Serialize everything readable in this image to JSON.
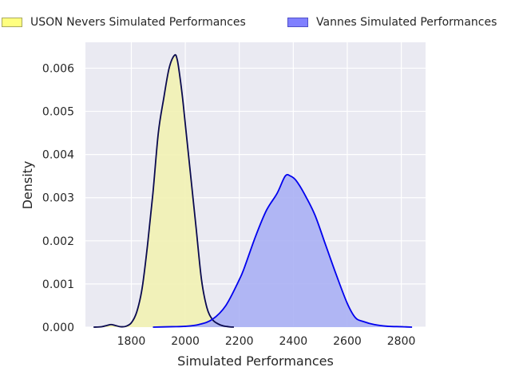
{
  "chart_data": {
    "type": "area",
    "title": "",
    "xlabel": "Simulated Performances",
    "ylabel": "Density",
    "xlim": [
      1630,
      2890
    ],
    "ylim": [
      0,
      0.0066
    ],
    "grid": true,
    "legend_position": "top",
    "x_ticks": [
      "1800",
      "2000",
      "2200",
      "2400",
      "2600",
      "2800"
    ],
    "y_ticks": [
      "0.000",
      "0.001",
      "0.002",
      "0.003",
      "0.004",
      "0.005",
      "0.006"
    ],
    "x_tick_values": [
      1800,
      2000,
      2200,
      2400,
      2600,
      2800
    ],
    "y_tick_values": [
      0,
      0.001,
      0.002,
      0.003,
      0.004,
      0.005,
      0.006
    ],
    "series": [
      {
        "name": "USON Nevers Simulated Performances",
        "fill_color": "#f2f2b3",
        "line_color": "#0a0a4f",
        "legend_color": "#ffff80",
        "x": [
          1660,
          1690,
          1710,
          1725,
          1740,
          1760,
          1780,
          1800,
          1820,
          1840,
          1860,
          1880,
          1900,
          1920,
          1940,
          1960,
          1970,
          1980,
          1990,
          2000,
          2020,
          2040,
          2060,
          2080,
          2100,
          2120,
          2140,
          2160,
          2180
        ],
        "y": [
          0,
          1e-05,
          4e-05,
          6e-05,
          4e-05,
          1e-05,
          2e-05,
          0.0001,
          0.00035,
          0.0009,
          0.0019,
          0.0031,
          0.0045,
          0.0053,
          0.006,
          0.0063,
          0.0062,
          0.0058,
          0.0053,
          0.0047,
          0.0035,
          0.0023,
          0.0011,
          0.00045,
          0.00018,
          8e-05,
          3e-05,
          1e-05,
          0
        ]
      },
      {
        "name": "Vannes Simulated Performances",
        "fill_color": "#aab0f4",
        "line_color": "#0000ee",
        "legend_color": "#8080ff",
        "x": [
          1880,
          1950,
          2000,
          2050,
          2100,
          2150,
          2200,
          2220,
          2260,
          2300,
          2340,
          2370,
          2390,
          2410,
          2440,
          2480,
          2520,
          2560,
          2600,
          2630,
          2660,
          2700,
          2750,
          2800,
          2840
        ],
        "y": [
          0,
          1e-05,
          2e-05,
          6e-05,
          0.00018,
          0.0005,
          0.0011,
          0.0014,
          0.0021,
          0.0027,
          0.0031,
          0.0035,
          0.0035,
          0.0034,
          0.0031,
          0.0026,
          0.0019,
          0.0012,
          0.00055,
          0.00022,
          0.00013,
          6e-05,
          2e-05,
          1e-05,
          0
        ]
      }
    ]
  }
}
